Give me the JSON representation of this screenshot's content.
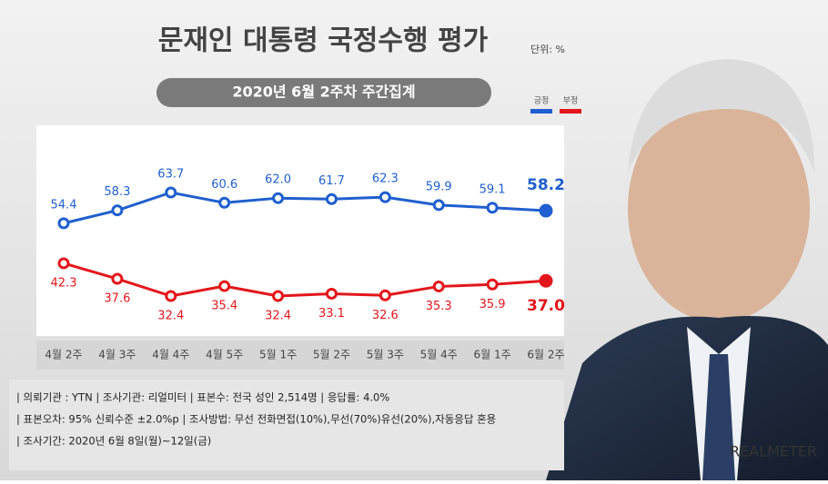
{
  "chart_data": {
    "type": "line",
    "title": "문재인 대통령 국정수행 평가",
    "unit_label": "단위: %",
    "subtitle": "2020년 6월 2주차 주간집계",
    "categories": [
      "4월 2주",
      "4월 3주",
      "4월 4주",
      "4월 5주",
      "5월 1주",
      "5월 2주",
      "5월 3주",
      "5월 4주",
      "6월 1주",
      "6월 2주"
    ],
    "series": [
      {
        "name": "긍정",
        "color": "#1f5fcf",
        "values": [
          54.4,
          58.3,
          63.7,
          60.6,
          62.0,
          61.7,
          62.3,
          59.9,
          59.1,
          58.2
        ],
        "value_labels": [
          "54.4",
          "58.3",
          "63.7",
          "60.6",
          "62.0",
          "61.7",
          "62.3",
          "59.9",
          "59.1",
          "58.2"
        ]
      },
      {
        "name": "부정",
        "color": "#e3161b",
        "values": [
          42.3,
          37.6,
          32.4,
          35.4,
          32.4,
          33.1,
          32.6,
          35.3,
          35.9,
          37.0
        ],
        "value_labels": [
          "42.3",
          "37.6",
          "32.4",
          "35.4",
          "32.4",
          "33.1",
          "32.6",
          "35.3",
          "35.9",
          "37.0"
        ]
      }
    ]
  },
  "notes": [
    "| 의뢰기관 : YTN  |  조사기관: 리얼미터 |  표본수: 전국 성인 2,514명  |  응답률: 4.0%",
    "| 표본오차: 95% 신뢰수준 ±2.0%p  |  조사방법: 무선 전화면접(10%),무선(70%)유선(20%),자동응답 혼용",
    "| 조사기간: 2020년 6월 8일(월)~12일(금)"
  ],
  "brand": "REALMETER"
}
